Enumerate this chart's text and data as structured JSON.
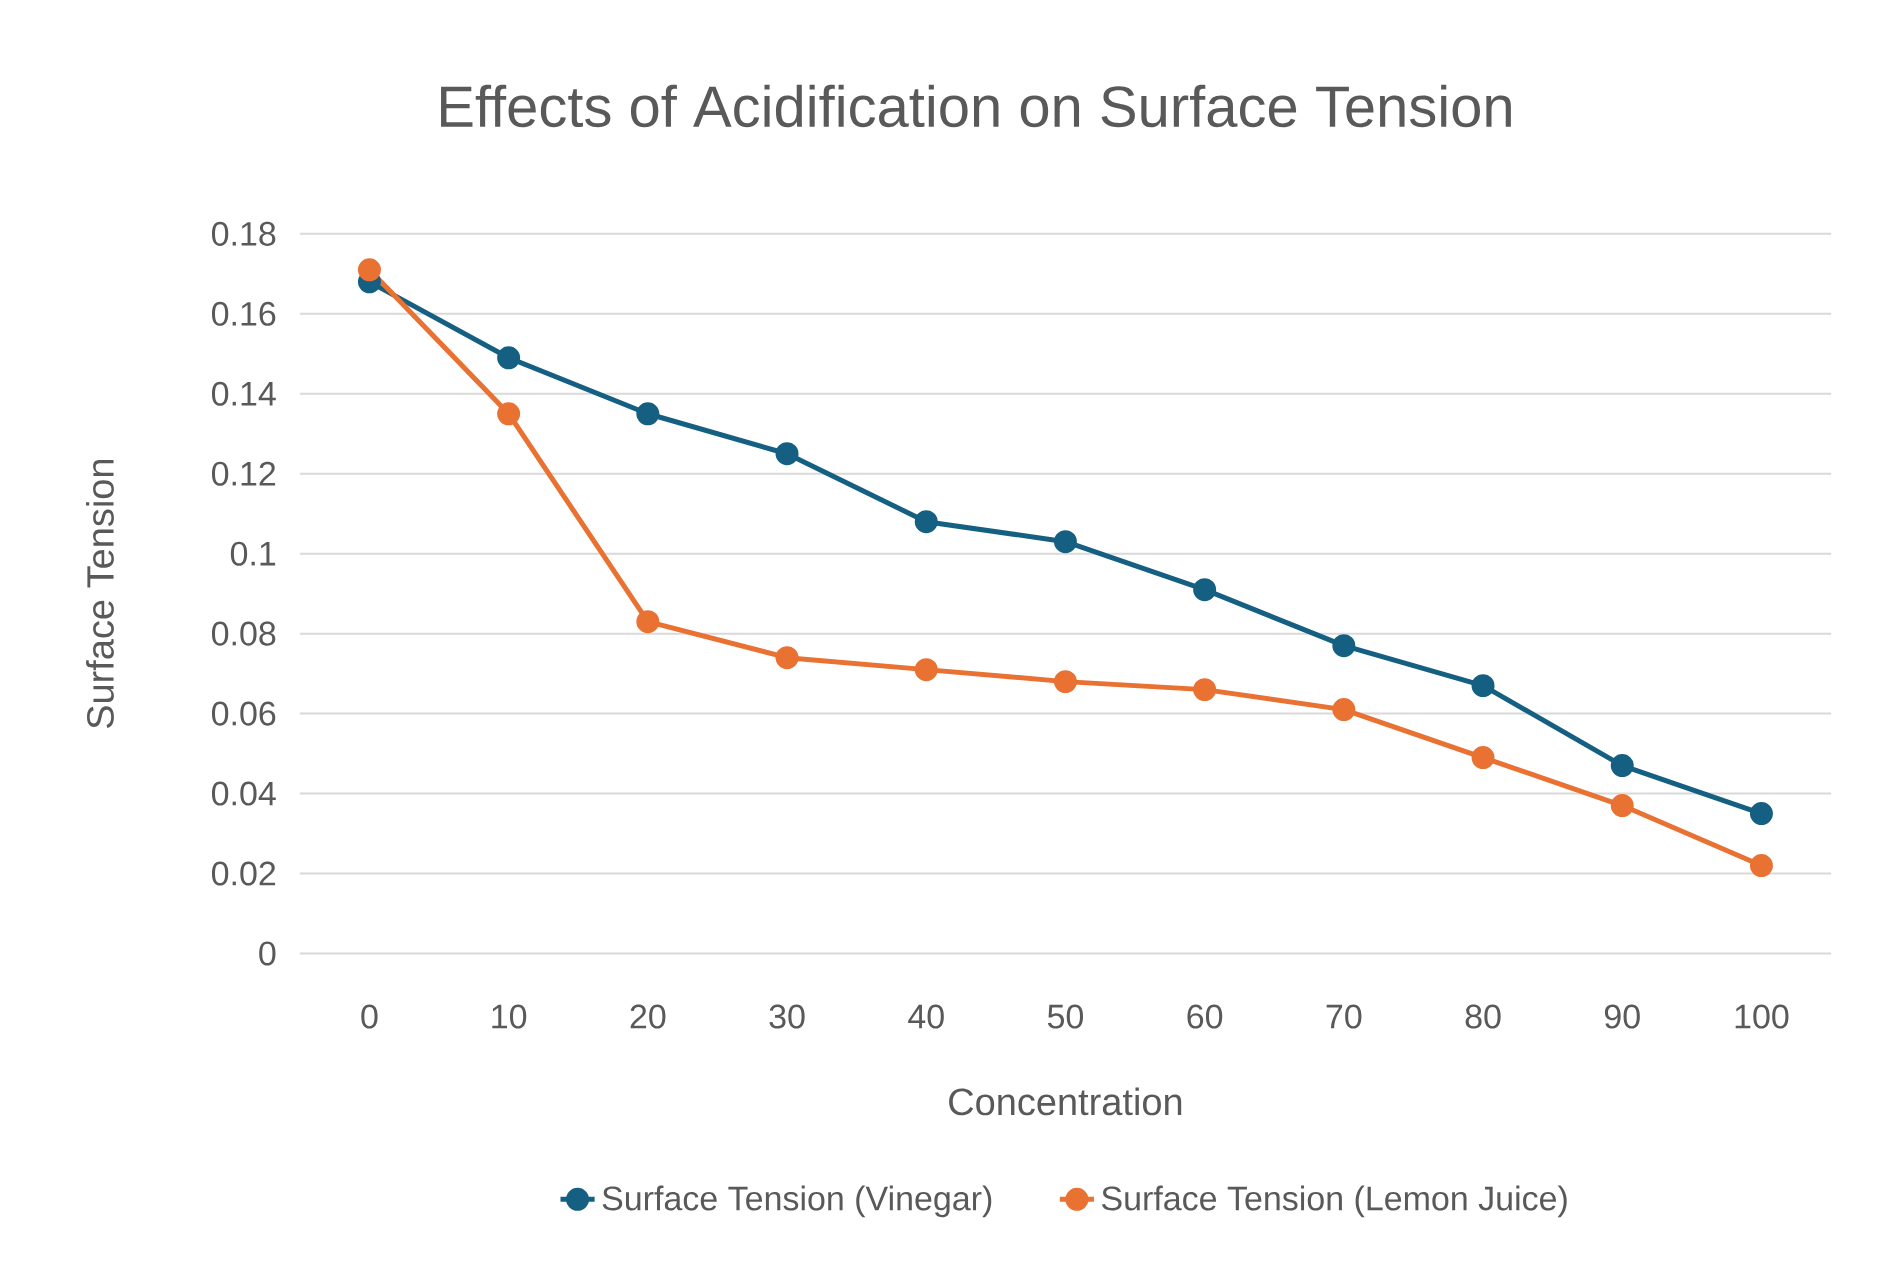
{
  "chart_data": {
    "type": "line",
    "title": "Effects of Acidification on Surface Tension",
    "xlabel": "Concentration",
    "ylabel": "Surface Tension",
    "categories": [
      "0",
      "10",
      "20",
      "30",
      "40",
      "50",
      "60",
      "70",
      "80",
      "90",
      "100"
    ],
    "series": [
      {
        "name": "Surface Tension (Vinegar)",
        "color": "#156082",
        "values": [
          0.168,
          0.149,
          0.135,
          0.125,
          0.108,
          0.103,
          0.091,
          0.077,
          0.067,
          0.047,
          0.035
        ]
      },
      {
        "name": "Surface Tension (Lemon Juice)",
        "color": "#e97132",
        "values": [
          0.171,
          0.135,
          0.083,
          0.074,
          0.071,
          0.068,
          0.066,
          0.061,
          0.049,
          0.037,
          0.022
        ]
      }
    ],
    "ylim": [
      0,
      0.18
    ],
    "yticks": [
      0,
      0.02,
      0.04,
      0.06,
      0.08,
      0.1,
      0.12,
      0.14,
      0.16,
      0.18
    ],
    "grid": "y",
    "legend": "bottom",
    "marker": "circle",
    "line_style": "solid"
  }
}
